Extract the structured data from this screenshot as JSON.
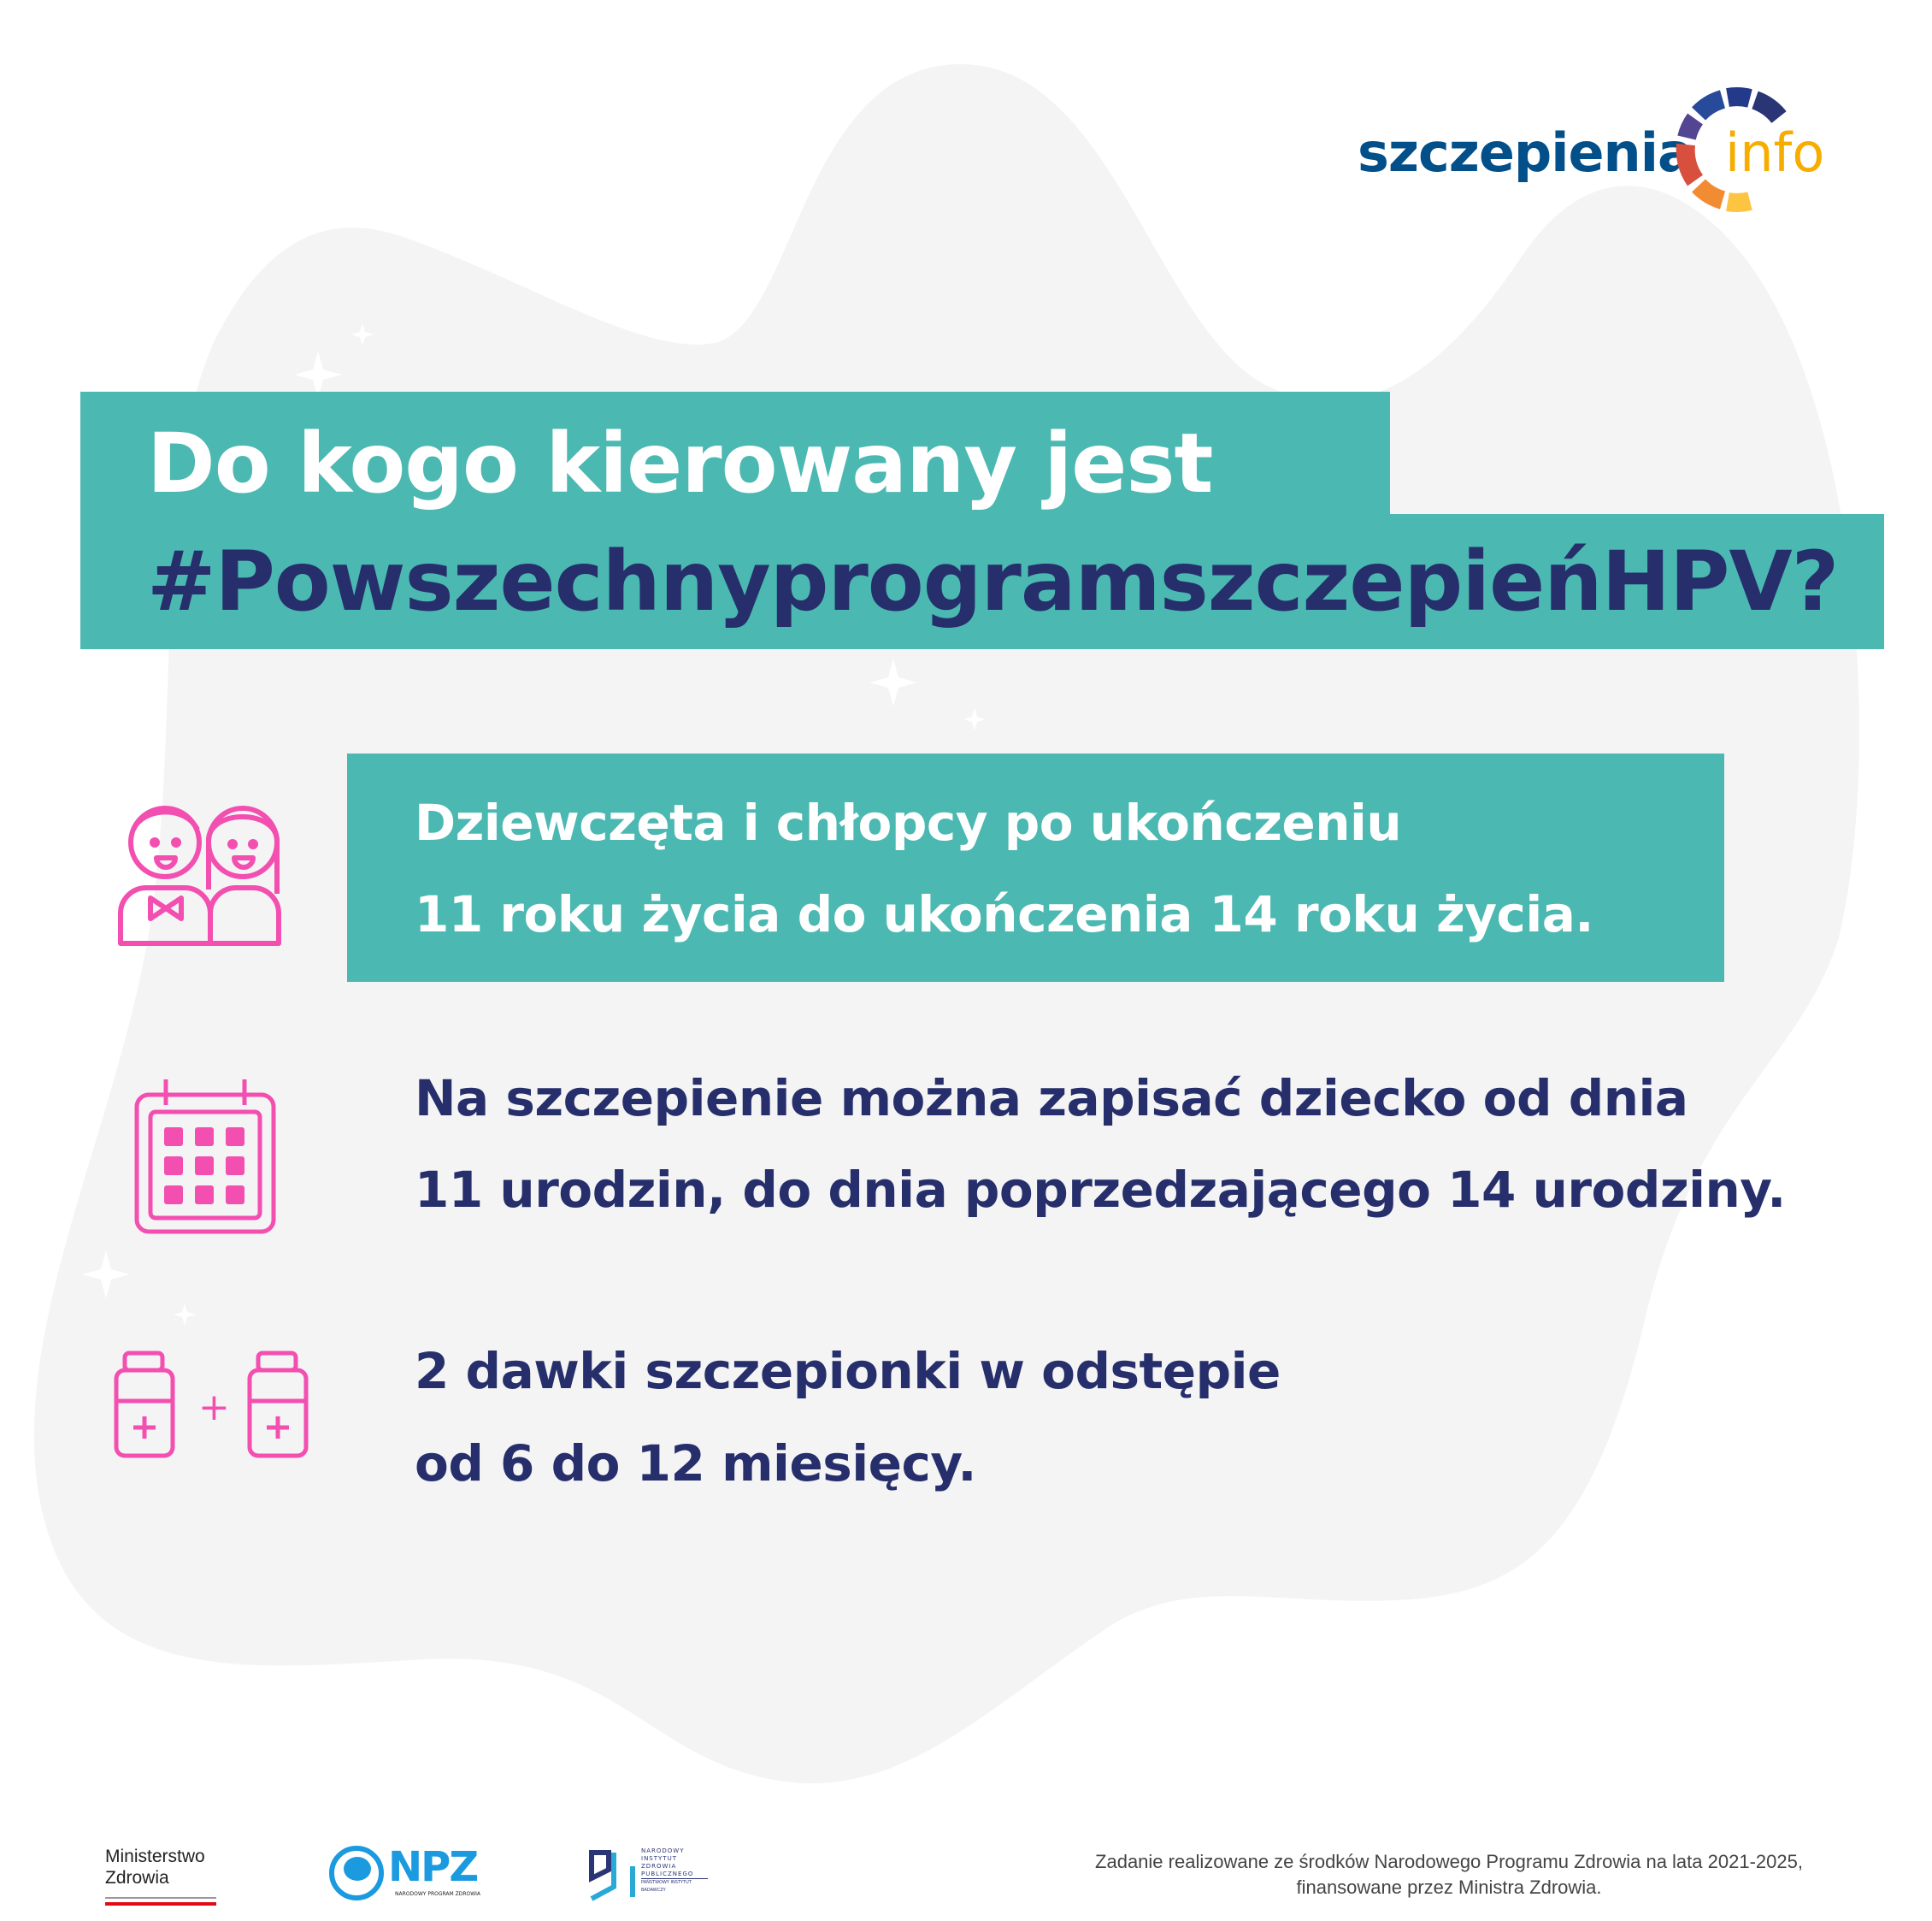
{
  "logo": {
    "part1": "szczepienia",
    "part2": "info",
    "colors": [
      "#d94f3d",
      "#f28c33",
      "#fdc441",
      "#544592",
      "#284a9a",
      "#233a8b",
      "#2a3575"
    ],
    "text_color": "#034f8a",
    "info_color": "#f6ad00"
  },
  "title": {
    "line1": "Do kogo kierowany jest",
    "line2": "#PowszechnyprogramszczepieńHPV?"
  },
  "items": [
    {
      "icon": "children-icon",
      "line1": "Dziewczęta i chłopcy po ukończeniu",
      "line2": "11 roku życia do ukończenia 14 roku życia."
    },
    {
      "icon": "calendar-icon",
      "line1": "Na szczepienie można zapisać dziecko od dnia",
      "line2": "11 urodzin, do dnia poprzedzającego 14 urodziny."
    },
    {
      "icon": "vaccine-vials-icon",
      "line1": "2 dawki szczepionki w odstępie",
      "line2": "od 6 do 12 miesięcy.",
      "plus": "+"
    }
  ],
  "footer": {
    "ministry": {
      "line1": "Ministerstwo",
      "line2": "Zdrowia"
    },
    "npz": {
      "name": "NPZ",
      "sub": "NARODOWY PROGRAM ZDROWIA"
    },
    "nizp": {
      "lines": [
        "NARODOWY",
        "INSTYTUT",
        "ZDROWIA",
        "PUBLICZNEGO",
        "PAŃSTWOWY INSTYTUT BADAWCZY"
      ]
    },
    "note_line1": "Zadanie realizowane ze środków Narodowego Programu Zdrowia na lata 2021-2025,",
    "note_line2": "finansowane przez Ministra Zdrowia."
  },
  "colors": {
    "teal": "#4bb8b1",
    "navy": "#262f6b",
    "pink": "#f24fb0",
    "blob": "#f4f4f4"
  }
}
